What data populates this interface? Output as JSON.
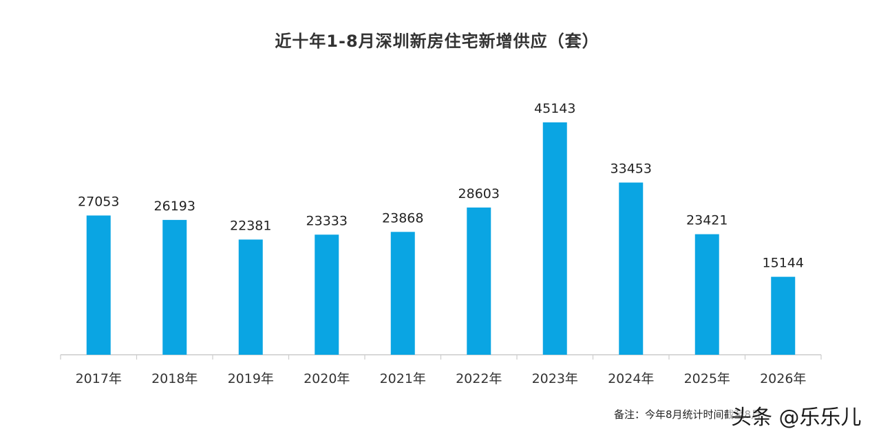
{
  "chart_data": {
    "type": "bar",
    "title": "近十年1-8月深圳新房住宅新增供应（套）",
    "categories": [
      "2017年",
      "2018年",
      "2019年",
      "2020年",
      "2021年",
      "2022年",
      "2023年",
      "2024年",
      "2025年",
      "2026年"
    ],
    "values": [
      27053,
      26193,
      22381,
      23333,
      23868,
      28603,
      45143,
      33453,
      23421,
      15144
    ],
    "data_labels": [
      "27053",
      "26193",
      "22381",
      "23333",
      "23868",
      "28603",
      "45143",
      "33453",
      "23421",
      "15144"
    ],
    "xlabel": "",
    "ylabel": "",
    "ylim": [
      0,
      50000
    ],
    "grid": false,
    "legend": "none",
    "bar_color": "#0AA5E3",
    "axis_color": "#cccccc"
  },
  "note": "备注：今年8月统计时间截至8月",
  "watermark": "头条 @乐乐儿"
}
